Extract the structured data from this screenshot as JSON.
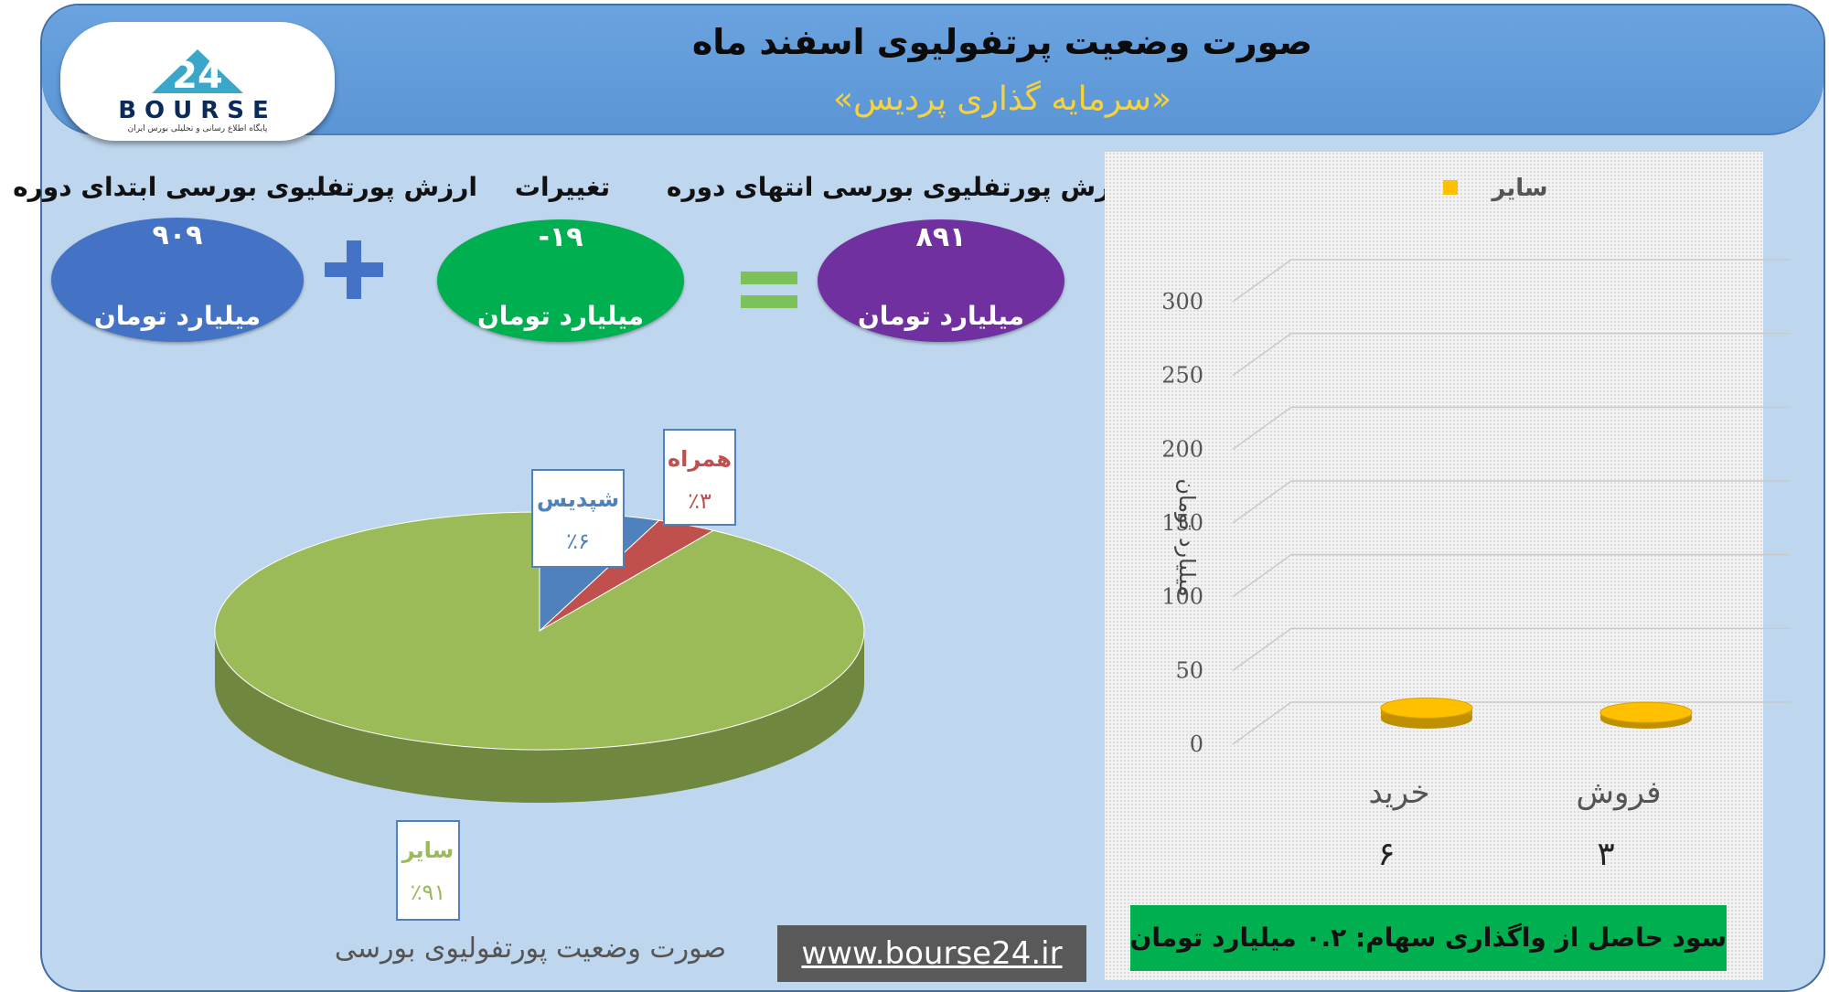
{
  "header": {
    "title": "صورت وضعیت پرتفولیوی اسفند ماه",
    "subtitle": "«سرمایه گذاری پردیس»"
  },
  "logo": {
    "text": "BOURSE",
    "number": "24",
    "tagline": "پایگاه اطلاع رسانی و تحلیلی بورس ایران"
  },
  "summary": {
    "start": {
      "label": "ارزش پورتفلیوی بورسی ابتدای دوره",
      "value": "۹۰۹",
      "unit": "میلیارد تومان",
      "color": "#4472c4"
    },
    "change": {
      "label": "تغییرات",
      "value": "-۱۹",
      "unit": "میلیارد تومان",
      "color": "#00b050"
    },
    "end": {
      "label": "ارزش پورتفلیوی بورسی انتهای دوره",
      "value": "۸۹۱",
      "unit": "میلیارد تومان",
      "color": "#7030a0"
    },
    "plus_icon": "plus-icon",
    "equals_icon": "equals-icon"
  },
  "pie_caption": "صورت وضعیت پورتفولیوی بورسی",
  "website": "www.bourse24.ir",
  "profit_text": "سود حاصل از واگذاری سهام: ۰.۲ میلیارد تومان",
  "chart_data": [
    {
      "type": "pie",
      "categories": [
        "سایر",
        "شپدیس",
        "همراه"
      ],
      "values": [
        91,
        6,
        3
      ],
      "labels": [
        "٪۹۱",
        "٪۶",
        "٪۳"
      ],
      "colors": [
        "#9bbb59",
        "#4f81bd",
        "#c0504d"
      ]
    },
    {
      "type": "bar",
      "categories": [
        "خرید",
        "فروش"
      ],
      "series": [
        {
          "name": "سایر",
          "values": [
            6,
            3
          ],
          "labels": [
            "۶",
            "۳"
          ],
          "color": "#ffc000"
        }
      ],
      "ylabel": "میلیارد تومان",
      "ylim": [
        0,
        300
      ],
      "yticks": [
        0,
        50,
        100,
        150,
        200,
        250,
        300
      ],
      "grid": true,
      "legend": "top"
    }
  ]
}
